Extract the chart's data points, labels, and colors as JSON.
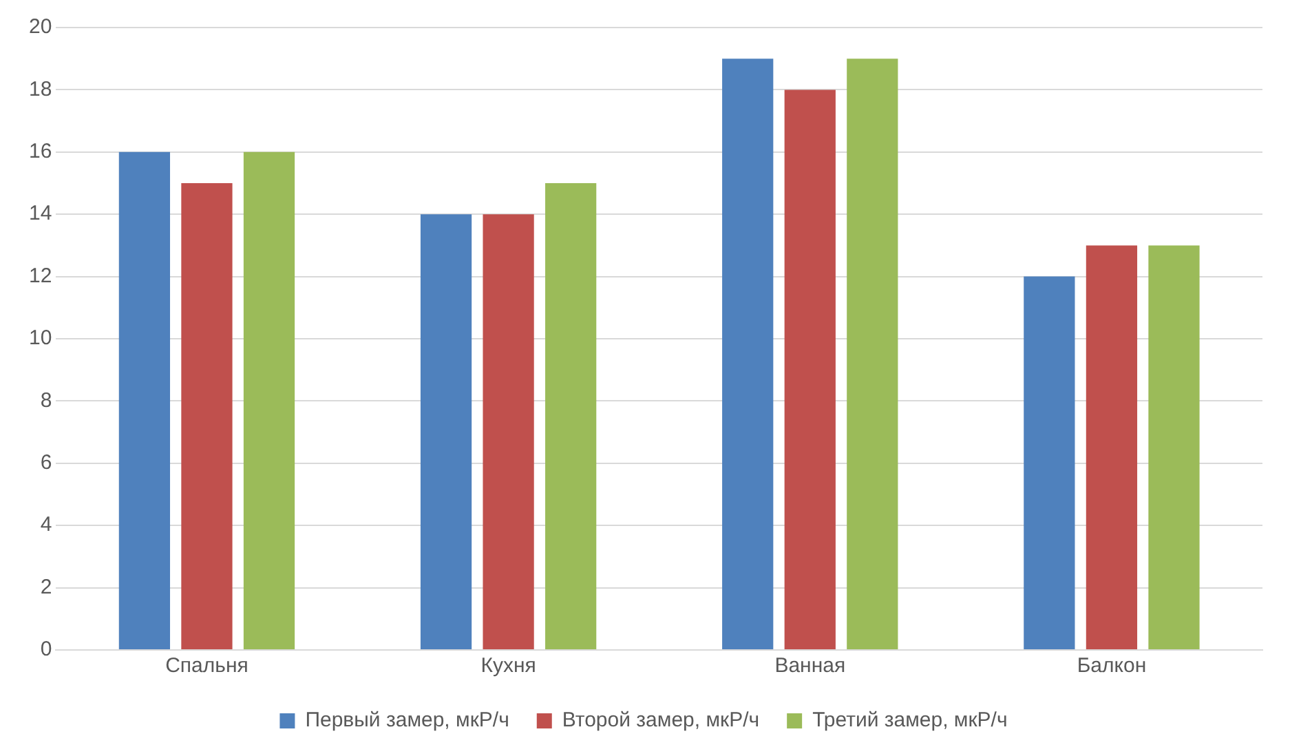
{
  "chart_data": {
    "type": "bar",
    "categories": [
      "Спальня",
      "Кухня",
      "Ванная",
      "Балкон"
    ],
    "series": [
      {
        "name": "Первый замер, мкР/ч",
        "color": "#4f81bd",
        "values": [
          16,
          14,
          19,
          12
        ]
      },
      {
        "name": "Второй замер, мкР/ч",
        "color": "#c0504d",
        "values": [
          15,
          14,
          18,
          13
        ]
      },
      {
        "name": "Третий замер, мкР/ч",
        "color": "#9bbb59",
        "values": [
          16,
          15,
          19,
          13
        ]
      }
    ],
    "ylim": [
      0,
      20
    ],
    "yticks": [
      0,
      2,
      4,
      6,
      8,
      10,
      12,
      14,
      16,
      18,
      20
    ],
    "grid": "y",
    "legend": "bottom"
  }
}
